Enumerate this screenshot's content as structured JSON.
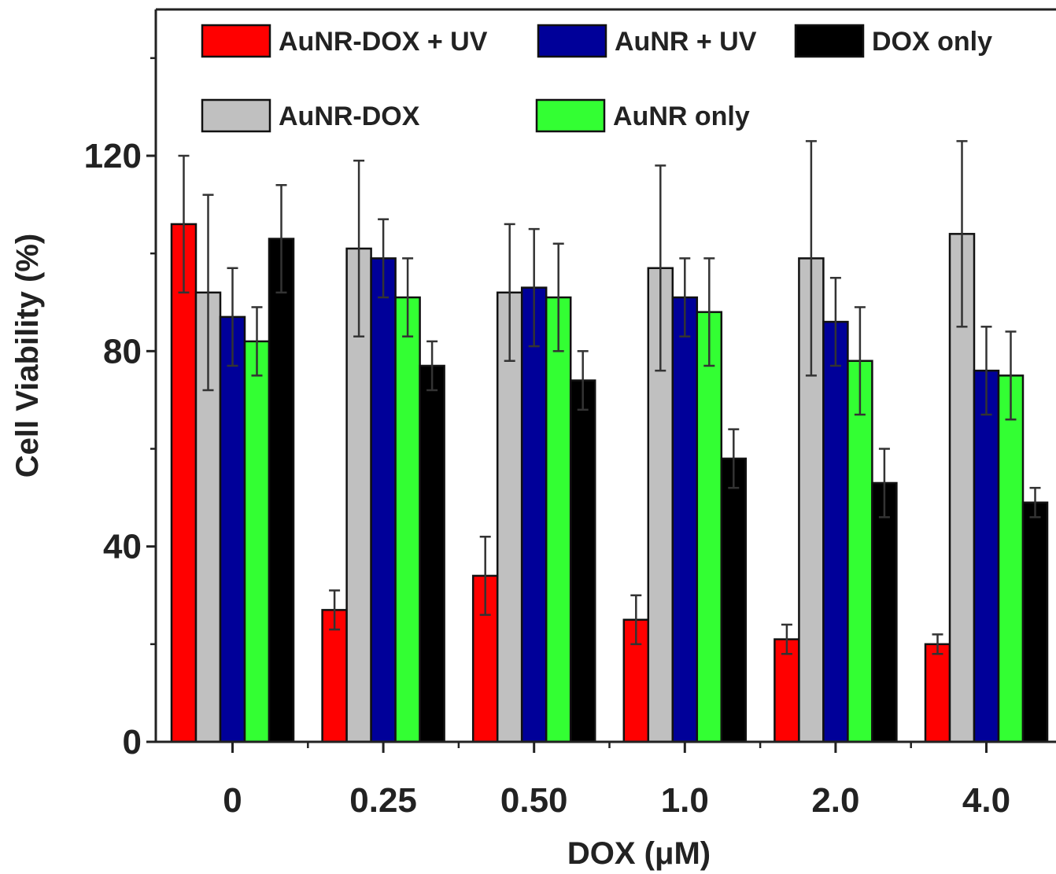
{
  "chart_data": {
    "type": "bar",
    "xlabel": "DOX (μM)",
    "ylabel": "Cell Viability (%)",
    "categories": [
      "0",
      "0.25",
      "0.50",
      "1.0",
      "2.0",
      "4.0"
    ],
    "ylim": [
      0,
      150
    ],
    "yticks": [
      0,
      40,
      80,
      120
    ],
    "grid": false,
    "legend_position": "top",
    "error_bars": true,
    "series": [
      {
        "name": "AuNR-DOX + UV",
        "color": "#ff0000",
        "values": [
          106,
          27,
          34,
          25,
          21,
          20
        ],
        "errors": [
          14,
          4,
          8,
          5,
          3,
          2
        ]
      },
      {
        "name": "AuNR-DOX",
        "color": "#c0c0c0",
        "values": [
          92,
          101,
          92,
          97,
          99,
          104
        ],
        "errors": [
          20,
          18,
          14,
          21,
          24,
          19
        ]
      },
      {
        "name": "AuNR + UV",
        "color": "#000099",
        "values": [
          87,
          99,
          93,
          91,
          86,
          76
        ],
        "errors": [
          10,
          8,
          12,
          8,
          9,
          9
        ]
      },
      {
        "name": "AuNR only",
        "color": "#33ff33",
        "values": [
          82,
          91,
          91,
          88,
          78,
          75
        ],
        "errors": [
          7,
          8,
          11,
          11,
          11,
          9
        ]
      },
      {
        "name": "DOX only",
        "color": "#000000",
        "values": [
          103,
          77,
          74,
          58,
          53,
          49
        ],
        "errors": [
          11,
          5,
          6,
          6,
          7,
          3
        ]
      }
    ]
  }
}
